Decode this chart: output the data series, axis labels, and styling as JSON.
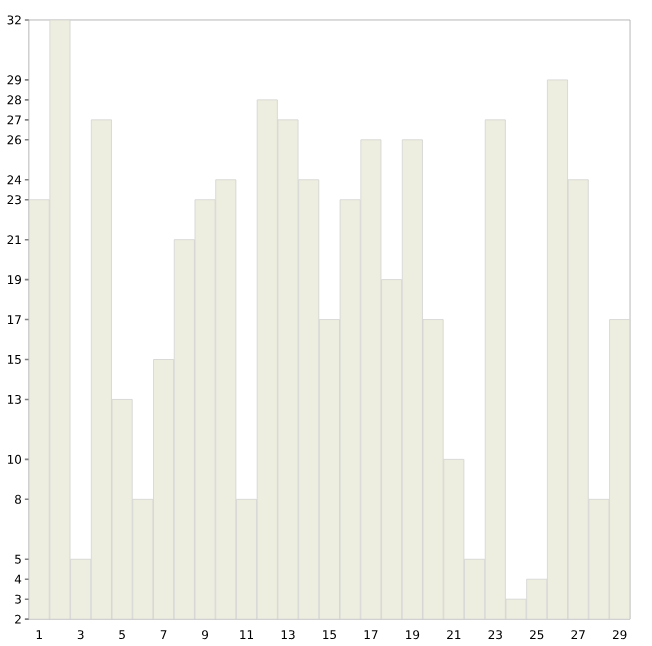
{
  "chart_data": {
    "type": "bar",
    "categories": [
      "1",
      null,
      "3",
      null,
      "5",
      null,
      "7",
      null,
      "9",
      null,
      "11",
      null,
      "13",
      null,
      "15",
      null,
      "17",
      null,
      "19",
      null,
      "21",
      null,
      "23",
      null,
      "25",
      null,
      "27",
      null,
      "29"
    ],
    "values": [
      23,
      32,
      5,
      27,
      13,
      8,
      15,
      21,
      23,
      24,
      8,
      28,
      27,
      24,
      17,
      23,
      26,
      19,
      26,
      17,
      10,
      5,
      27,
      3,
      4,
      29,
      24,
      8,
      17
    ],
    "color": "#eeeee0",
    "ylim": [
      2,
      32
    ],
    "yticks": [
      2,
      3,
      4,
      5,
      8,
      10,
      13,
      15,
      17,
      19,
      21,
      23,
      24,
      26,
      27,
      28,
      29,
      32
    ]
  }
}
